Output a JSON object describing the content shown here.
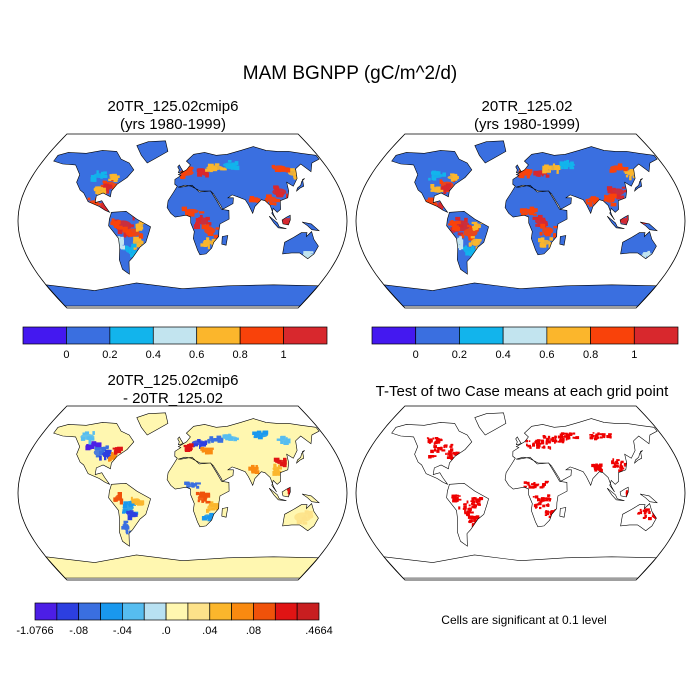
{
  "title": "MAM BGNPP (gC/m^2/d)",
  "panels": [
    {
      "title_line1": "20TR_125.02cmip6",
      "title_line2": "(yrs 1980-1999)"
    },
    {
      "title_line1": "20TR_125.02",
      "title_line2": "(yrs 1980-1999)"
    },
    {
      "title_line1": "20TR_125.02cmip6",
      "title_line2": "- 20TR_125.02"
    },
    {
      "title_line1": "T-Test of two Case means at each grid point",
      "title_line2": ""
    }
  ],
  "note": "Cells are significant at 0.1 level",
  "chart_data": [
    {
      "type": "heatmap",
      "projection": "robinson",
      "title": "20TR_125.02cmip6",
      "subtitle": "(yrs 1980-1999)",
      "colorbar": {
        "colors": [
          "#4418f0",
          "#3a6fe0",
          "#12b4ec",
          "#c2e4ef",
          "#fbb62c",
          "#f9420a",
          "#d8282d"
        ],
        "tick_labels": [
          "0",
          "0.2",
          "0.4",
          "0.6",
          "0.8",
          "1"
        ]
      }
    },
    {
      "type": "heatmap",
      "projection": "robinson",
      "title": "20TR_125.02",
      "subtitle": "(yrs 1980-1999)",
      "colorbar": {
        "colors": [
          "#4418f0",
          "#3a6fe0",
          "#12b4ec",
          "#c2e4ef",
          "#fbb62c",
          "#f9420a",
          "#d8282d"
        ],
        "tick_labels": [
          "0",
          "0.2",
          "0.4",
          "0.6",
          "0.8",
          "1"
        ]
      }
    },
    {
      "type": "heatmap",
      "projection": "robinson",
      "title": "20TR_125.02cmip6",
      "subtitle": "- 20TR_125.02",
      "colorbar": {
        "colors": [
          "#4c1ee6",
          "#2c3fe0",
          "#3a6fe0",
          "#1998ee",
          "#56bdf0",
          "#b8e1f2",
          "#fff7b0",
          "#fde28a",
          "#fbb62c",
          "#f98a10",
          "#f0520a",
          "#e01414",
          "#c81e20"
        ],
        "tick_labels": [
          "-1.0766",
          "-.08",
          "-.04",
          ".0",
          ".04",
          ".08",
          ".4664"
        ]
      }
    },
    {
      "type": "heatmap",
      "projection": "robinson",
      "title": "T-Test of two Case means at each grid point",
      "significance_level": 0.1,
      "colors": {
        "significant": "#ee0000"
      }
    }
  ]
}
